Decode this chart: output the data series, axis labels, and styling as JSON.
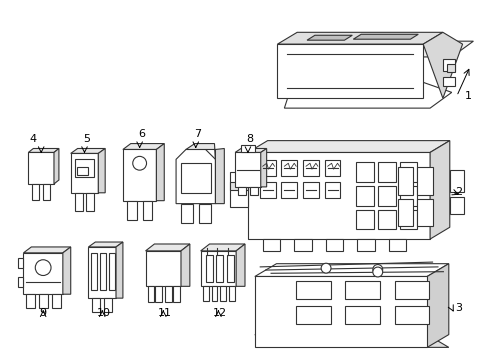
{
  "bg_color": "#ffffff",
  "line_color": "#333333",
  "line_width": 0.8,
  "fig_width": 4.89,
  "fig_height": 3.6
}
